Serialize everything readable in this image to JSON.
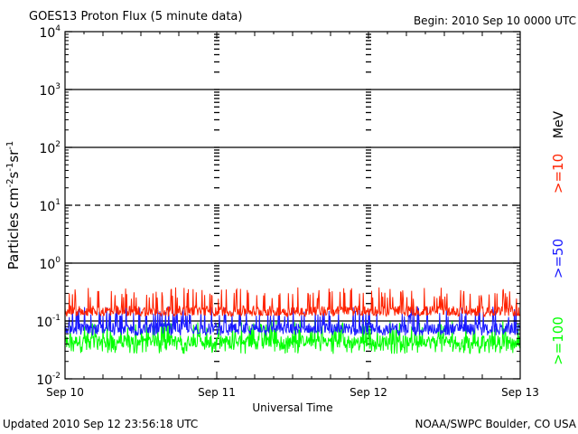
{
  "header": {
    "title": "GOES13 Proton Flux (5 minute data)",
    "begin": "Begin: 2010 Sep 10 0000 UTC"
  },
  "footer": {
    "updated": "Updated 2010 Sep 12 23:56:18 UTC",
    "credit": "NOAA/SWPC Boulder, CO USA"
  },
  "chart_data": {
    "type": "line",
    "title": "GOES13 Proton Flux (5 minute data)",
    "xlabel": "Universal Time",
    "ylabel_parts": [
      "Particles cm",
      "-2",
      "s",
      "-1",
      "sr",
      "-1"
    ],
    "x_ticks": [
      "Sep 10",
      "Sep 11",
      "Sep 12",
      "Sep 13"
    ],
    "xlim_hours": [
      0,
      72
    ],
    "yscale": "log",
    "ylim": [
      0.01,
      10000
    ],
    "y_ticks": [
      {
        "base": "10",
        "exp": "-2"
      },
      {
        "base": "10",
        "exp": "-1"
      },
      {
        "base": "10",
        "exp": "0"
      },
      {
        "base": "10",
        "exp": "1"
      },
      {
        "base": "10",
        "exp": "2"
      },
      {
        "base": "10",
        "exp": "3"
      },
      {
        "base": "10",
        "exp": "4"
      }
    ],
    "reference_lines": [
      {
        "value": 1000,
        "style": "solid"
      },
      {
        "value": 100,
        "style": "solid"
      },
      {
        "value": 10,
        "style": "dashed"
      },
      {
        "value": 1,
        "style": "solid"
      },
      {
        "value": 0.1,
        "style": "solid"
      }
    ],
    "legend_unit": "MeV",
    "series": [
      {
        "name": ">=10",
        "color": "#ff2200",
        "baseline": 0.15,
        "range": [
          0.12,
          0.38
        ]
      },
      {
        "name": ">=50",
        "color": "#1a1aff",
        "baseline": 0.075,
        "range": [
          0.055,
          0.18
        ]
      },
      {
        "name": ">=100",
        "color": "#00ff00",
        "baseline": 0.045,
        "range": [
          0.027,
          0.1
        ]
      }
    ]
  }
}
